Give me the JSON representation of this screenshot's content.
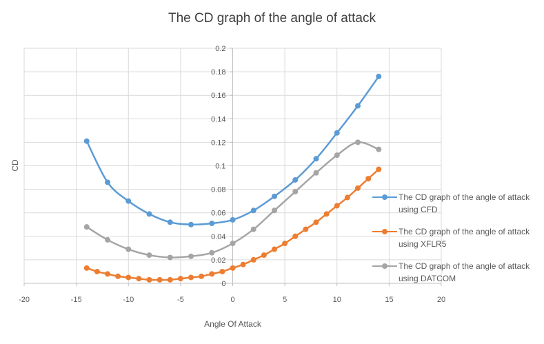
{
  "chart_data": {
    "type": "line",
    "title": "The CD graph of the angle of attack",
    "xlabel": "Angle Of Attack",
    "ylabel": "CD",
    "xlim": [
      -20,
      20
    ],
    "ylim": [
      0,
      0.2
    ],
    "x_ticks": [
      "-20",
      "-15",
      "-10",
      "-5",
      "0",
      "5",
      "10",
      "15",
      "20"
    ],
    "y_ticks": [
      "0",
      "0.02",
      "0.04",
      "0.06",
      "0.08",
      "0.1",
      "0.12",
      "0.14",
      "0.16",
      "0.18",
      "0.2"
    ],
    "grid": true,
    "legend_position": "right",
    "series": [
      {
        "name": "The CD graph of the angle of attack using CFD",
        "color": "#5B9BD5",
        "x": [
          -14,
          -12,
          -10,
          -8,
          -6,
          -4,
          -2,
          0,
          2,
          4,
          6,
          8,
          10,
          12,
          14
        ],
        "y": [
          0.121,
          0.086,
          0.07,
          0.059,
          0.052,
          0.05,
          0.051,
          0.054,
          0.062,
          0.074,
          0.088,
          0.106,
          0.128,
          0.151,
          0.176
        ]
      },
      {
        "name": "The CD graph of the angle of attack using XFLR5",
        "color": "#ED7D31",
        "x": [
          -14,
          -13,
          -12,
          -11,
          -10,
          -9,
          -8,
          -7,
          -6,
          -5,
          -4,
          -3,
          -2,
          -1,
          0,
          1,
          2,
          3,
          4,
          5,
          6,
          7,
          8,
          9,
          10,
          11,
          12,
          13,
          14
        ],
        "y": [
          0.013,
          0.01,
          0.008,
          0.006,
          0.005,
          0.004,
          0.003,
          0.003,
          0.003,
          0.004,
          0.005,
          0.006,
          0.008,
          0.01,
          0.013,
          0.016,
          0.02,
          0.024,
          0.029,
          0.034,
          0.04,
          0.046,
          0.052,
          0.059,
          0.066,
          0.073,
          0.081,
          0.089,
          0.097
        ]
      },
      {
        "name": "The CD graph of the angle of attack using DATCOM",
        "color": "#A5A5A5",
        "x": [
          -14,
          -12,
          -10,
          -8,
          -6,
          -4,
          -2,
          0,
          2,
          4,
          6,
          8,
          10,
          12,
          14
        ],
        "y": [
          0.048,
          0.037,
          0.029,
          0.024,
          0.022,
          0.023,
          0.026,
          0.034,
          0.046,
          0.062,
          0.078,
          0.094,
          0.109,
          0.12,
          0.114
        ]
      }
    ]
  }
}
